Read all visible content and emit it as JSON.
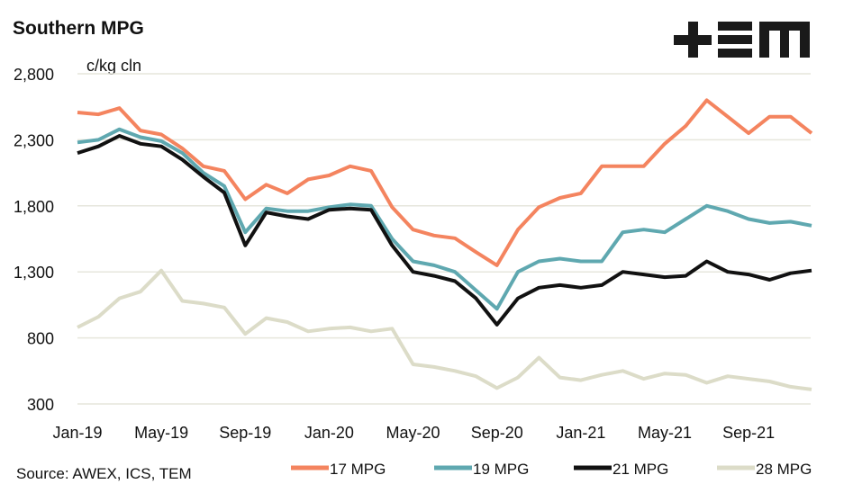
{
  "chart_data": {
    "type": "line",
    "title": "Southern MPG",
    "ylabel": "c/kg cln",
    "xlabel": "",
    "source": "Source: AWEX, ICS, TEM",
    "logo": "TEM",
    "ylim": [
      300,
      2800
    ],
    "yticks": [
      "2,800",
      "2,300",
      "1,800",
      "1,300",
      "800",
      "300"
    ],
    "ytick_values": [
      2800,
      2300,
      1800,
      1300,
      800,
      300
    ],
    "xticks": [
      "Jan-19",
      "May-19",
      "Sep-19",
      "Jan-20",
      "May-20",
      "Sep-20",
      "Jan-21",
      "May-21",
      "Sep-21"
    ],
    "grid": "horizontal",
    "legend_position": "bottom",
    "x": [
      "2019-01",
      "2019-02",
      "2019-03",
      "2019-04",
      "2019-05",
      "2019-06",
      "2019-07",
      "2019-08",
      "2019-09",
      "2019-10",
      "2019-11",
      "2019-12",
      "2020-01",
      "2020-02",
      "2020-03",
      "2020-04",
      "2020-05",
      "2020-06",
      "2020-07",
      "2020-08",
      "2020-09",
      "2020-10",
      "2020-11",
      "2020-12",
      "2021-01",
      "2021-02",
      "2021-03",
      "2021-04",
      "2021-05",
      "2021-06",
      "2021-07",
      "2021-08",
      "2021-09",
      "2021-10",
      "2021-11",
      "2021-12"
    ],
    "series": [
      {
        "name": "17 MPG",
        "color": "#f4845f",
        "values": [
          2507,
          2493,
          2540,
          2370,
          2340,
          2235,
          2100,
          2065,
          1850,
          1960,
          1895,
          2000,
          2030,
          2100,
          2065,
          1790,
          1620,
          1575,
          1555,
          1450,
          1350,
          1620,
          1790,
          1860,
          1895,
          2100,
          2100,
          2100,
          2270,
          2405,
          2600,
          2475,
          2350,
          2475,
          2475,
          2350
        ]
      },
      {
        "name": "19 MPG",
        "color": "#5fa8b0",
        "values": [
          2280,
          2300,
          2380,
          2320,
          2290,
          2200,
          2050,
          1950,
          1600,
          1780,
          1760,
          1760,
          1790,
          1810,
          1800,
          1550,
          1380,
          1350,
          1300,
          1160,
          1020,
          1300,
          1380,
          1400,
          1380,
          1380,
          1600,
          1620,
          1600,
          1700,
          1800,
          1760,
          1700,
          1670,
          1680,
          1650
        ]
      },
      {
        "name": "21 MPG",
        "color": "#111111",
        "values": [
          2200,
          2250,
          2330,
          2270,
          2250,
          2150,
          2020,
          1900,
          1500,
          1750,
          1720,
          1700,
          1770,
          1780,
          1770,
          1500,
          1300,
          1270,
          1230,
          1100,
          900,
          1100,
          1180,
          1200,
          1180,
          1200,
          1300,
          1280,
          1260,
          1270,
          1380,
          1300,
          1280,
          1240,
          1290,
          1310
        ]
      },
      {
        "name": "28 MPG",
        "color": "#dcdcc8",
        "values": [
          880,
          960,
          1100,
          1150,
          1310,
          1080,
          1060,
          1030,
          830,
          950,
          920,
          850,
          870,
          880,
          850,
          870,
          600,
          580,
          550,
          510,
          420,
          500,
          650,
          500,
          480,
          520,
          550,
          490,
          530,
          520,
          460,
          510,
          490,
          470,
          430,
          410
        ]
      }
    ]
  }
}
